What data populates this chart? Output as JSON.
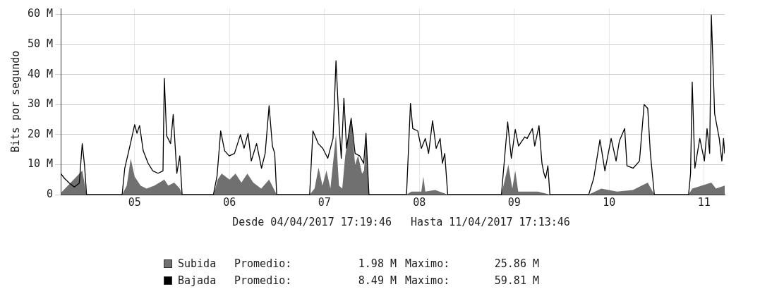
{
  "chart_data": {
    "type": "area",
    "ylabel": "Bits por segundo",
    "xlabel": "Desde 04/04/2017 17:19:46   Hasta 11/04/2017 17:13:46",
    "xlim": [
      "2017-04-04T17:19",
      "2017-04-11T17:13"
    ],
    "xticks": [
      {
        "value": "2017-04-05T12:00",
        "label": "05"
      },
      {
        "value": "2017-04-06T12:00",
        "label": "06"
      },
      {
        "value": "2017-04-07T12:00",
        "label": "07"
      },
      {
        "value": "2017-04-08T12:00",
        "label": "08"
      },
      {
        "value": "2017-04-09T12:00",
        "label": "09"
      },
      {
        "value": "2017-04-10T12:00",
        "label": "10"
      },
      {
        "value": "2017-04-11T12:00",
        "label": "11"
      }
    ],
    "ylim": [
      0,
      62
    ],
    "yticks": [
      {
        "value": 0,
        "label": "0"
      },
      {
        "value": 10,
        "label": "10 M"
      },
      {
        "value": 20,
        "label": "20 M"
      },
      {
        "value": 30,
        "label": "30 M"
      },
      {
        "value": 40,
        "label": "40 M"
      },
      {
        "value": 50,
        "label": "50 M"
      },
      {
        "value": 60,
        "label": "60 M"
      }
    ],
    "grid": true,
    "legend": "bottom",
    "annotations": [
      "Promedio:",
      "1.98 M",
      "Maximo:",
      "25.86 M",
      "Promedio:",
      "8.49 M",
      "Maximo:",
      "59.81 M"
    ],
    "series": [
      {
        "name": "Subida",
        "color": "#707070",
        "x": [
          "2017-04-04T17:19",
          "2017-04-04T22:45",
          "2017-04-04T23:50",
          "2017-04-05T08:50",
          "2017-04-05T10:00",
          "2017-04-05T11:00",
          "2017-04-05T12:00",
          "2017-04-05T13:30",
          "2017-04-05T15:00",
          "2017-04-05T17:00",
          "2017-04-05T19:30",
          "2017-04-05T20:30",
          "2017-04-05T22:00",
          "2017-04-05T23:25",
          "2017-04-06T00:00",
          "2017-04-06T08:00",
          "2017-04-06T09:00",
          "2017-04-06T10:00",
          "2017-04-06T12:00",
          "2017-04-06T13:30",
          "2017-04-06T15:00",
          "2017-04-06T16:30",
          "2017-04-06T18:00",
          "2017-04-06T20:00",
          "2017-04-06T22:00",
          "2017-04-06T23:55",
          "2017-04-07T08:15",
          "2017-04-07T09:30",
          "2017-04-07T10:30",
          "2017-04-07T11:30",
          "2017-04-07T12:30",
          "2017-04-07T13:30",
          "2017-04-07T14:55",
          "2017-04-07T15:40",
          "2017-04-07T16:30",
          "2017-04-07T17:15",
          "2017-04-07T18:45",
          "2017-04-07T19:45",
          "2017-04-07T20:30",
          "2017-04-07T21:30",
          "2017-04-07T22:00",
          "2017-04-07T22:30",
          "2017-04-07T23:15",
          "2017-04-08T08:45",
          "2017-04-08T10:00",
          "2017-04-08T12:30",
          "2017-04-08T13:00",
          "2017-04-08T13:30",
          "2017-04-08T16:00",
          "2017-04-08T19:10",
          "2017-04-09T08:45",
          "2017-04-09T10:30",
          "2017-04-09T11:30",
          "2017-04-09T12:15",
          "2017-04-09T13:00",
          "2017-04-09T18:00",
          "2017-04-09T21:00",
          "2017-04-10T06:50",
          "2017-04-10T10:00",
          "2017-04-10T14:00",
          "2017-04-10T18:00",
          "2017-04-10T21:45",
          "2017-04-10T23:25",
          "2017-04-11T08:05",
          "2017-04-11T09:00",
          "2017-04-11T13:50",
          "2017-04-11T15:00",
          "2017-04-11T17:13"
        ],
        "values": [
          0.5,
          8,
          0,
          0,
          3,
          12,
          6,
          3,
          2,
          3,
          5,
          3,
          4,
          2,
          0,
          0,
          5,
          7,
          5,
          7,
          4,
          7,
          4,
          2,
          5,
          0,
          0,
          2,
          9,
          3,
          8,
          2,
          20,
          3,
          2,
          13,
          25.9,
          10,
          13,
          7,
          8,
          18,
          0,
          0,
          1,
          1,
          6,
          1,
          1.5,
          0,
          0,
          10,
          2,
          8,
          1,
          1,
          0,
          0,
          2,
          1,
          1.5,
          4,
          0,
          0,
          2,
          4,
          2,
          3
        ]
      },
      {
        "name": "Bajada",
        "type": "line",
        "color": "#000000",
        "x": [
          "2017-04-04T17:19",
          "2017-04-04T18:15",
          "2017-04-04T19:30",
          "2017-04-04T20:45",
          "2017-04-04T22:00",
          "2017-04-04T22:45",
          "2017-04-04T23:20",
          "2017-04-04T23:50",
          "2017-04-05T08:50",
          "2017-04-05T09:30",
          "2017-04-05T10:40",
          "2017-04-05T12:00",
          "2017-04-05T12:35",
          "2017-04-05T13:15",
          "2017-04-05T14:10",
          "2017-04-05T15:25",
          "2017-04-05T16:35",
          "2017-04-05T17:55",
          "2017-04-05T19:10",
          "2017-04-05T19:30",
          "2017-04-05T20:05",
          "2017-04-05T21:05",
          "2017-04-05T21:45",
          "2017-04-05T22:40",
          "2017-04-05T23:25",
          "2017-04-06T00:00",
          "2017-04-06T07:55",
          "2017-04-06T08:50",
          "2017-04-06T09:45",
          "2017-04-06T10:45",
          "2017-04-06T11:55",
          "2017-04-06T13:15",
          "2017-04-06T14:45",
          "2017-04-06T15:40",
          "2017-04-06T16:40",
          "2017-04-06T17:30",
          "2017-04-06T18:50",
          "2017-04-06T20:05",
          "2017-04-06T21:00",
          "2017-04-06T22:00",
          "2017-04-06T22:50",
          "2017-04-06T23:25",
          "2017-04-06T23:55",
          "2017-04-07T08:15",
          "2017-04-07T09:05",
          "2017-04-07T10:25",
          "2017-04-07T11:35",
          "2017-04-07T12:50",
          "2017-04-07T14:10",
          "2017-04-07T14:55",
          "2017-04-07T15:40",
          "2017-04-07T16:15",
          "2017-04-07T16:55",
          "2017-04-07T17:35",
          "2017-04-07T18:45",
          "2017-04-07T19:45",
          "2017-04-07T20:55",
          "2017-04-07T21:55",
          "2017-04-07T22:30",
          "2017-04-07T23:15",
          "2017-04-08T08:45",
          "2017-04-08T09:45",
          "2017-04-08T10:20",
          "2017-04-08T11:35",
          "2017-04-08T12:30",
          "2017-04-08T13:30",
          "2017-04-08T14:20",
          "2017-04-08T15:20",
          "2017-04-08T16:15",
          "2017-04-08T17:15",
          "2017-04-08T17:50",
          "2017-04-08T18:25",
          "2017-04-08T19:10",
          "2017-04-09T08:45",
          "2017-04-09T10:20",
          "2017-04-09T11:15",
          "2017-04-09T12:15",
          "2017-04-09T13:05",
          "2017-04-09T14:40",
          "2017-04-09T15:15",
          "2017-04-09T16:35",
          "2017-04-09T17:10",
          "2017-04-09T18:15",
          "2017-04-09T19:00",
          "2017-04-09T19:30",
          "2017-04-09T19:55",
          "2017-04-09T20:30",
          "2017-04-09T21:00",
          "2017-04-10T06:50",
          "2017-04-10T08:05",
          "2017-04-10T09:40",
          "2017-04-10T10:55",
          "2017-04-10T12:30",
          "2017-04-10T13:45",
          "2017-04-10T14:35",
          "2017-04-10T15:55",
          "2017-04-10T16:30",
          "2017-04-10T18:05",
          "2017-04-10T19:40",
          "2017-04-10T20:50",
          "2017-04-10T21:45",
          "2017-04-10T22:25",
          "2017-04-10T23:25",
          "2017-04-11T08:05",
          "2017-04-11T08:35",
          "2017-04-11T09:00",
          "2017-04-11T09:40",
          "2017-04-11T10:55",
          "2017-04-11T12:05",
          "2017-04-11T12:45",
          "2017-04-11T13:25",
          "2017-04-11T13:50",
          "2017-04-11T14:40",
          "2017-04-11T15:50",
          "2017-04-11T16:30",
          "2017-04-11T16:55",
          "2017-04-11T17:13"
        ],
        "values": [
          7,
          5.4,
          3.8,
          2.5,
          3.8,
          17,
          9.6,
          0,
          0,
          8.8,
          15.4,
          23.3,
          20.4,
          23,
          14.6,
          10.4,
          7.9,
          7.1,
          7.9,
          38.7,
          19.6,
          17,
          26.7,
          7.1,
          12.9,
          0,
          0,
          6.2,
          21.2,
          14.6,
          12.9,
          13.7,
          20,
          15.4,
          20.4,
          11.2,
          17,
          8.8,
          13.7,
          29.6,
          16.2,
          13.7,
          0,
          0,
          21.2,
          17,
          15.4,
          12.1,
          18.7,
          44.6,
          23.7,
          12.1,
          32.1,
          15.4,
          25.4,
          13.7,
          12.9,
          10.4,
          20.4,
          0,
          0,
          30.4,
          22,
          21.2,
          15.4,
          18.7,
          13.7,
          24.6,
          15.4,
          18.7,
          10.4,
          13.7,
          0,
          0,
          24.2,
          12.1,
          21.7,
          16.2,
          19.2,
          18.7,
          22,
          16.2,
          23,
          10.4,
          7.1,
          5.4,
          9.6,
          0,
          0,
          5.4,
          18.3,
          7.9,
          18.7,
          11.2,
          17.9,
          22,
          9.6,
          8.8,
          11.2,
          30,
          28.7,
          13.7,
          0,
          0,
          7.1,
          37.5,
          8.8,
          18.7,
          11.2,
          22,
          13.7,
          59.8,
          27,
          18.7,
          11.2,
          18.7,
          13.7
        ]
      }
    ]
  }
}
